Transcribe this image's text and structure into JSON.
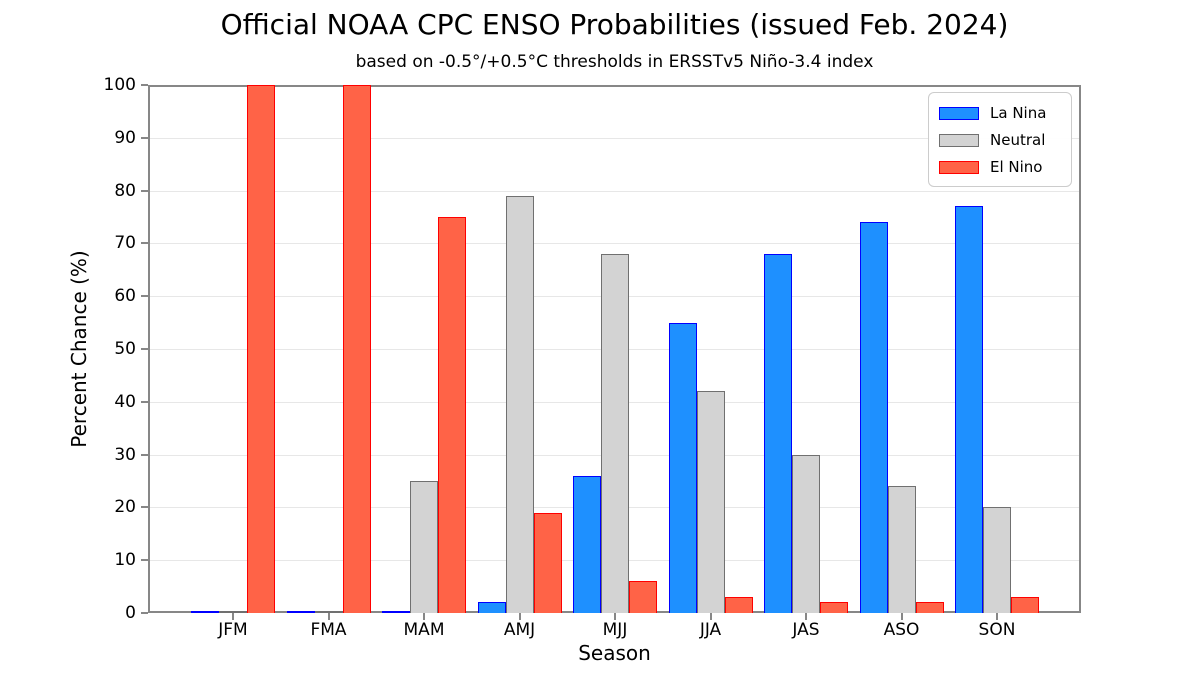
{
  "figure": {
    "kind": "matplotlib-style static chart"
  },
  "chart_data": {
    "type": "bar",
    "title": "Official NOAA CPC ENSO Probabilities (issued Feb. 2024)",
    "subtitle": "based on -0.5°/+0.5°C thresholds in ERSSTv5 Niño-3.4 index",
    "xlabel": "Season",
    "ylabel": "Percent Chance (%)",
    "categories": [
      "JFM",
      "FMA",
      "MAM",
      "AMJ",
      "MJJ",
      "JJA",
      "JAS",
      "ASO",
      "SON"
    ],
    "series": [
      {
        "name": "La Nina",
        "fill": "#1E90FF",
        "edge": "#0000FF",
        "values": [
          0,
          0,
          0,
          2,
          26,
          55,
          68,
          74,
          77
        ]
      },
      {
        "name": "Neutral",
        "fill": "#D3D3D3",
        "edge": "#707070",
        "values": [
          0,
          0,
          25,
          79,
          68,
          42,
          30,
          24,
          20
        ]
      },
      {
        "name": "El Nino",
        "fill": "#FF6347",
        "edge": "#FF0000",
        "values": [
          100,
          100,
          75,
          19,
          6,
          3,
          2,
          2,
          3
        ]
      }
    ],
    "ylim": [
      0,
      100
    ],
    "yticks": [
      0,
      10,
      20,
      30,
      40,
      50,
      60,
      70,
      80,
      90,
      100
    ],
    "grid": true,
    "legend_position": "upper right",
    "colors": {
      "grid": "#e7e7e7",
      "spine": "#878787",
      "background": "#ffffff",
      "text": "#000000"
    }
  }
}
